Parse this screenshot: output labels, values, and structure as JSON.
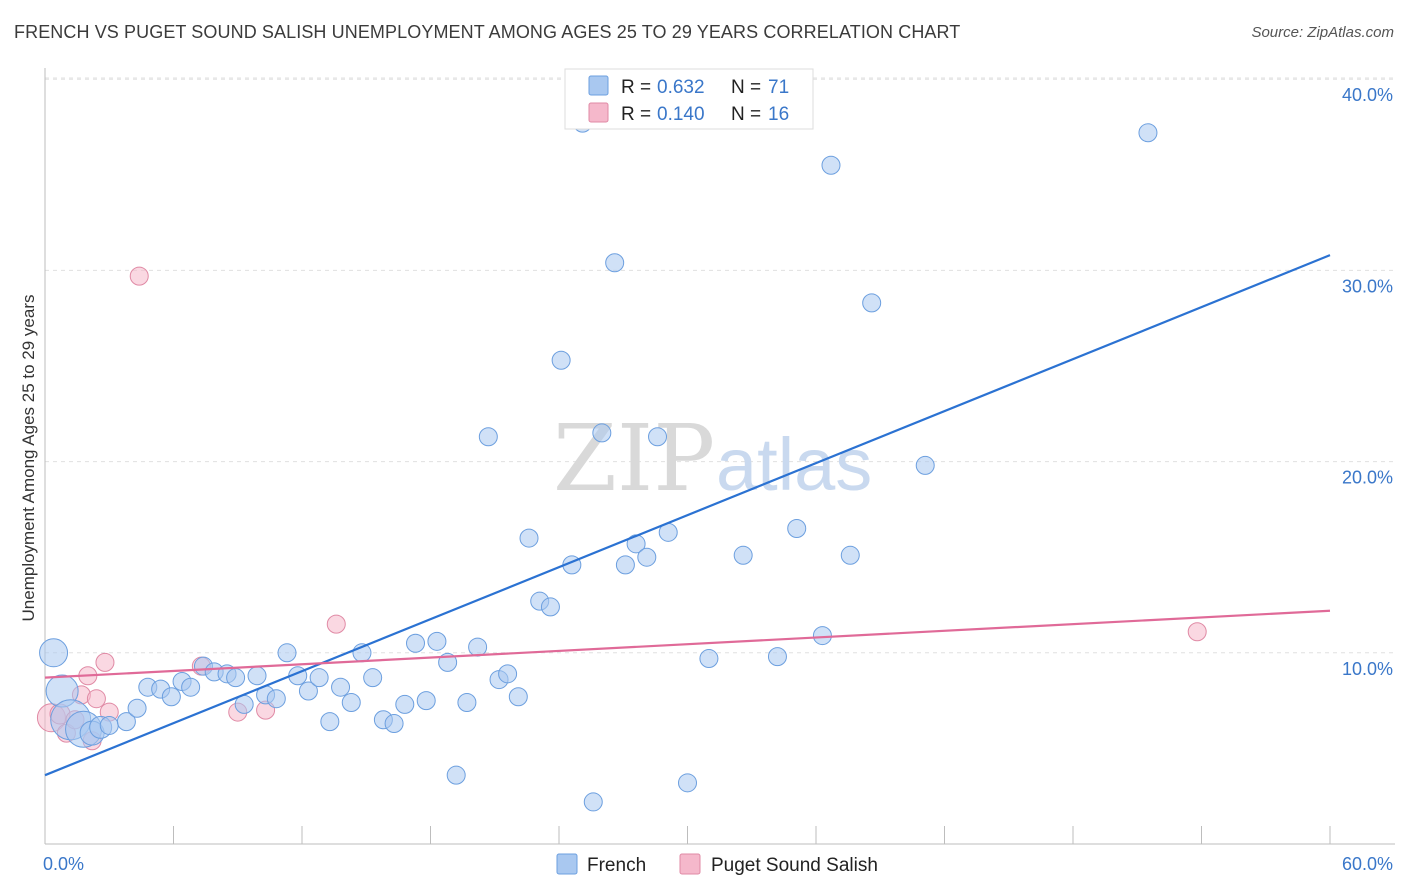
{
  "title": "FRENCH VS PUGET SOUND SALISH UNEMPLOYMENT AMONG AGES 25 TO 29 YEARS CORRELATION CHART",
  "source": "Source: ZipAtlas.com",
  "watermark": {
    "zip": "ZIP",
    "atlas": "atlas"
  },
  "legend": {
    "r_label": "R =",
    "n_label": "N =",
    "rows": [
      {
        "r": "0.632",
        "n": "71",
        "color": "#a9c8f0"
      },
      {
        "r": "0.140",
        "n": "16",
        "color": "#f5b8cb"
      }
    ]
  },
  "chart_data": {
    "type": "scatter",
    "title": "FRENCH VS PUGET SOUND SALISH UNEMPLOYMENT AMONG AGES 25 TO 29 YEARS CORRELATION CHART",
    "xlabel": "",
    "ylabel": "Unemployment Among Ages 25 to 29 years",
    "xlim": [
      0,
      60
    ],
    "ylim": [
      0,
      40
    ],
    "x_ticks_labeled": [
      "0.0%",
      "60.0%"
    ],
    "y_ticks": [
      {
        "value": 10,
        "label": "10.0%"
      },
      {
        "value": 20,
        "label": "20.0%"
      },
      {
        "value": 30,
        "label": "30.0%"
      },
      {
        "value": 40,
        "label": "40.0%"
      }
    ],
    "grid": "horizontal dashed",
    "legend_position": "top-center and bottom",
    "series": [
      {
        "name": "French",
        "color": "#a9c8f0",
        "stroke": "#6c9fdf",
        "trend_color": "#2b72d2",
        "trend": {
          "x": [
            0,
            60
          ],
          "y": [
            3.6,
            30.8
          ]
        },
        "points": [
          [
            0.4,
            10.0,
            14
          ],
          [
            0.8,
            8.0,
            16
          ],
          [
            1.2,
            6.5,
            20
          ],
          [
            1.8,
            6.0,
            18
          ],
          [
            2.2,
            5.8,
            12
          ],
          [
            2.6,
            6.1,
            11
          ],
          [
            3.0,
            6.2,
            9
          ],
          [
            3.8,
            6.4,
            9
          ],
          [
            4.3,
            7.1,
            9
          ],
          [
            4.8,
            8.2,
            9
          ],
          [
            5.4,
            8.1,
            9
          ],
          [
            5.9,
            7.7,
            9
          ],
          [
            6.4,
            8.5,
            9
          ],
          [
            6.8,
            8.2,
            9
          ],
          [
            7.4,
            9.3,
            9
          ],
          [
            7.9,
            9.0,
            9
          ],
          [
            8.5,
            8.9,
            9
          ],
          [
            8.9,
            8.7,
            9
          ],
          [
            9.3,
            7.3,
            9
          ],
          [
            9.9,
            8.8,
            9
          ],
          [
            10.3,
            7.8,
            9
          ],
          [
            10.8,
            7.6,
            9
          ],
          [
            11.3,
            10.0,
            9
          ],
          [
            11.8,
            8.8,
            9
          ],
          [
            12.3,
            8.0,
            9
          ],
          [
            12.8,
            8.7,
            9
          ],
          [
            13.3,
            6.4,
            9
          ],
          [
            13.8,
            8.2,
            9
          ],
          [
            14.3,
            7.4,
            9
          ],
          [
            14.8,
            10.0,
            9
          ],
          [
            15.3,
            8.7,
            9
          ],
          [
            15.8,
            6.5,
            9
          ],
          [
            16.3,
            6.3,
            9
          ],
          [
            16.8,
            7.3,
            9
          ],
          [
            17.3,
            10.5,
            9
          ],
          [
            17.8,
            7.5,
            9
          ],
          [
            18.3,
            10.6,
            9
          ],
          [
            18.8,
            9.5,
            9
          ],
          [
            19.2,
            3.6,
            9
          ],
          [
            19.7,
            7.4,
            9
          ],
          [
            20.2,
            10.3,
            9
          ],
          [
            20.7,
            21.3,
            9
          ],
          [
            21.2,
            8.6,
            9
          ],
          [
            21.6,
            8.9,
            9
          ],
          [
            22.1,
            7.7,
            9
          ],
          [
            22.6,
            16.0,
            9
          ],
          [
            23.1,
            12.7,
            9
          ],
          [
            23.6,
            12.4,
            9
          ],
          [
            24.1,
            25.3,
            9
          ],
          [
            24.6,
            14.6,
            9
          ],
          [
            25.1,
            37.7,
            9
          ],
          [
            25.6,
            2.2,
            9
          ],
          [
            26.0,
            21.5,
            9
          ],
          [
            26.6,
            30.4,
            9
          ],
          [
            27.1,
            14.6,
            9
          ],
          [
            27.6,
            15.7,
            9
          ],
          [
            28.1,
            15.0,
            9
          ],
          [
            28.6,
            21.3,
            9
          ],
          [
            29.1,
            16.3,
            9
          ],
          [
            30.0,
            3.2,
            9
          ],
          [
            31.0,
            9.7,
            9
          ],
          [
            32.0,
            38.4,
            9
          ],
          [
            32.6,
            15.1,
            9
          ],
          [
            34.2,
            9.8,
            9
          ],
          [
            35.1,
            16.5,
            9
          ],
          [
            36.3,
            10.9,
            9
          ],
          [
            36.7,
            35.5,
            9
          ],
          [
            37.6,
            15.1,
            9
          ],
          [
            38.6,
            28.3,
            9
          ],
          [
            41.1,
            19.8,
            9
          ],
          [
            51.5,
            37.2,
            9
          ]
        ]
      },
      {
        "name": "Puget Sound Salish",
        "color": "#f5b8cb",
        "stroke": "#e08aa5",
        "trend_color": "#e06a98",
        "trend": {
          "x": [
            0,
            60
          ],
          "y": [
            8.7,
            12.2
          ]
        },
        "points": [
          [
            0.3,
            6.6,
            14
          ],
          [
            0.7,
            6.8,
            10
          ],
          [
            1.0,
            5.8,
            9
          ],
          [
            1.4,
            6.5,
            9
          ],
          [
            1.7,
            7.8,
            9
          ],
          [
            2.0,
            8.8,
            9
          ],
          [
            2.2,
            5.4,
            9
          ],
          [
            2.4,
            7.6,
            9
          ],
          [
            2.8,
            9.5,
            9
          ],
          [
            3.0,
            6.9,
            9
          ],
          [
            4.4,
            29.7,
            9
          ],
          [
            7.3,
            9.3,
            9
          ],
          [
            9.0,
            6.9,
            9
          ],
          [
            10.3,
            7.0,
            9
          ],
          [
            13.6,
            11.5,
            9
          ],
          [
            53.8,
            11.1,
            9
          ]
        ]
      }
    ]
  }
}
